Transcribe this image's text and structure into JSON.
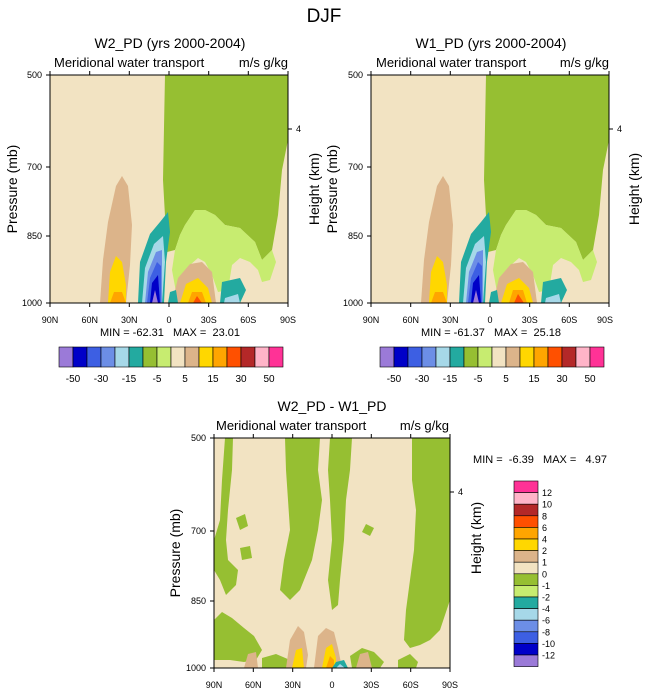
{
  "figure_title": "DJF",
  "colors": {
    "tan": "#f2e3c2",
    "yellowgreen": "#96bf32",
    "lightgreen": "#c7ec70",
    "teal": "#23aaa0",
    "lightblue": "#a6d8e8",
    "blue1": "#6c8ee6",
    "blue2": "#3d5fe3",
    "navy": "#0000c8",
    "purple": "#9b7ad8",
    "brown": "#dcb48a",
    "yellow": "#ffd700",
    "orange": "#ffa500",
    "redorange": "#ff5000",
    "darkred": "#b42828",
    "pink": "#ffb4c8",
    "magenta": "#ff3296"
  },
  "chart_data": [
    {
      "type": "heatmap",
      "title": "W2_PD (yrs 2000-2004)",
      "left_string": "Meridional water transport",
      "right_string": "m/s g/kg",
      "ylabel": "Pressure (mb)",
      "ylabel_right": "Height (km)",
      "x_ticks": [
        "90N",
        "60N",
        "30N",
        "0",
        "30S",
        "60S",
        "90S"
      ],
      "y_ticks": [
        "500",
        "700",
        "850",
        "1000"
      ],
      "y_right_ticks": [
        "4"
      ],
      "stats": "MIN = -62.31   MAX =  23.01",
      "xlim": [
        90,
        -90
      ],
      "ylim": [
        1000,
        500
      ]
    },
    {
      "type": "heatmap",
      "title": "W1_PD (yrs 2000-2004)",
      "left_string": "Meridional water transport",
      "right_string": "m/s g/kg",
      "ylabel": "Pressure (mb)",
      "ylabel_right": "Height (km)",
      "x_ticks": [
        "90N",
        "60N",
        "30N",
        "0",
        "30S",
        "60S",
        "90S"
      ],
      "y_ticks": [
        "500",
        "700",
        "850",
        "1000"
      ],
      "y_right_ticks": [
        "4"
      ],
      "stats": "MIN = -61.37   MAX =  25.18",
      "xlim": [
        90,
        -90
      ],
      "ylim": [
        1000,
        500
      ]
    },
    {
      "type": "heatmap",
      "title": "W2_PD - W1_PD",
      "left_string": "Meridional water transport",
      "right_string": "m/s g/kg",
      "ylabel": "Pressure (mb)",
      "ylabel_right": "Height (km)",
      "x_ticks": [
        "90N",
        "60N",
        "30N",
        "0",
        "30S",
        "60S",
        "90S"
      ],
      "y_ticks": [
        "500",
        "700",
        "850",
        "1000"
      ],
      "y_right_ticks": [
        "4"
      ],
      "stats": "MIN =  -6.39   MAX =   4.97",
      "xlim": [
        90,
        -90
      ],
      "ylim": [
        1000,
        500
      ]
    }
  ],
  "colorbar_top": {
    "labels": [
      "-50",
      "-30",
      "-15",
      "-5",
      "5",
      "15",
      "30",
      "50"
    ],
    "label_boxes": [
      1,
      3,
      5,
      7,
      9,
      11,
      13,
      15
    ],
    "colors": [
      "#9b7ad8",
      "#0000c8",
      "#3d5fe3",
      "#6c8ee6",
      "#a6d8e8",
      "#23aaa0",
      "#96bf32",
      "#c7ec70",
      "#f2e3c2",
      "#dcb48a",
      "#ffd700",
      "#ffa500",
      "#ff5000",
      "#b42828",
      "#ffb4c8",
      "#ff3296"
    ]
  },
  "colorbar_diff": {
    "labels": [
      "12",
      "10",
      "8",
      "6",
      "4",
      "2",
      "1",
      "0",
      "-1",
      "-2",
      "-4",
      "-6",
      "-8",
      "-10",
      "-12"
    ],
    "colors": [
      "#ff3296",
      "#ffb4c8",
      "#b42828",
      "#ff5000",
      "#ffa500",
      "#ffd700",
      "#dcb48a",
      "#f2e3c2",
      "#96bf32",
      "#c7ec70",
      "#23aaa0",
      "#a6d8e8",
      "#6c8ee6",
      "#3d5fe3",
      "#0000c8",
      "#9b7ad8"
    ]
  }
}
